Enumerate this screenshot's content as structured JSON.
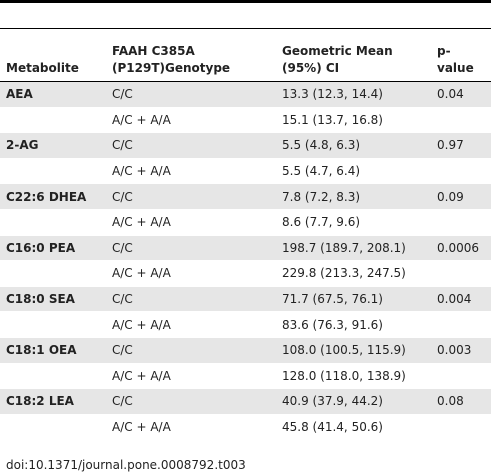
{
  "table": {
    "headers": [
      [
        "Metabolite"
      ],
      [
        "FAAH C385A",
        "(P129T)Genotype"
      ],
      [
        "Geometric Mean",
        "(95%) CI"
      ],
      [
        "p-value"
      ]
    ],
    "groups": [
      {
        "metabolite": "AEA",
        "p_value": "0.04",
        "rows": [
          {
            "genotype": "C/C",
            "mean": "13.3 (12.3, 14.4)"
          },
          {
            "genotype": "A/C + A/A",
            "mean": "15.1 (13.7, 16.8)"
          }
        ]
      },
      {
        "metabolite": "2-AG",
        "p_value": "0.97",
        "rows": [
          {
            "genotype": "C/C",
            "mean": "5.5 (4.8, 6.3)"
          },
          {
            "genotype": "A/C + A/A",
            "mean": "5.5 (4.7, 6.4)"
          }
        ]
      },
      {
        "metabolite": "C22:6 DHEA",
        "p_value": "0.09",
        "rows": [
          {
            "genotype": "C/C",
            "mean": "7.8 (7.2, 8.3)"
          },
          {
            "genotype": "A/C + A/A",
            "mean": "8.6 (7.7, 9.6)"
          }
        ]
      },
      {
        "metabolite": "C16:0 PEA",
        "p_value": "0.0006",
        "rows": [
          {
            "genotype": "C/C",
            "mean": "198.7 (189.7, 208.1)"
          },
          {
            "genotype": "A/C + A/A",
            "mean": "229.8 (213.3, 247.5)"
          }
        ]
      },
      {
        "metabolite": "C18:0 SEA",
        "p_value": "0.004",
        "rows": [
          {
            "genotype": "C/C",
            "mean": "71.7 (67.5, 76.1)"
          },
          {
            "genotype": "A/C + A/A",
            "mean": "83.6 (76.3, 91.6)"
          }
        ]
      },
      {
        "metabolite": "C18:1 OEA",
        "p_value": "0.003",
        "rows": [
          {
            "genotype": "C/C",
            "mean": "108.0 (100.5, 115.9)"
          },
          {
            "genotype": "A/C + A/A",
            "mean": "128.0 (118.0, 138.9)"
          }
        ]
      },
      {
        "metabolite": "C18:2 LEA",
        "p_value": "0.08",
        "rows": [
          {
            "genotype": "C/C",
            "mean": "40.9 (37.9, 44.2)"
          },
          {
            "genotype": "A/C + A/A",
            "mean": "45.8 (41.4, 50.6)"
          }
        ]
      }
    ]
  },
  "footer": "doi:10.1371/journal.pone.0008792.t003"
}
